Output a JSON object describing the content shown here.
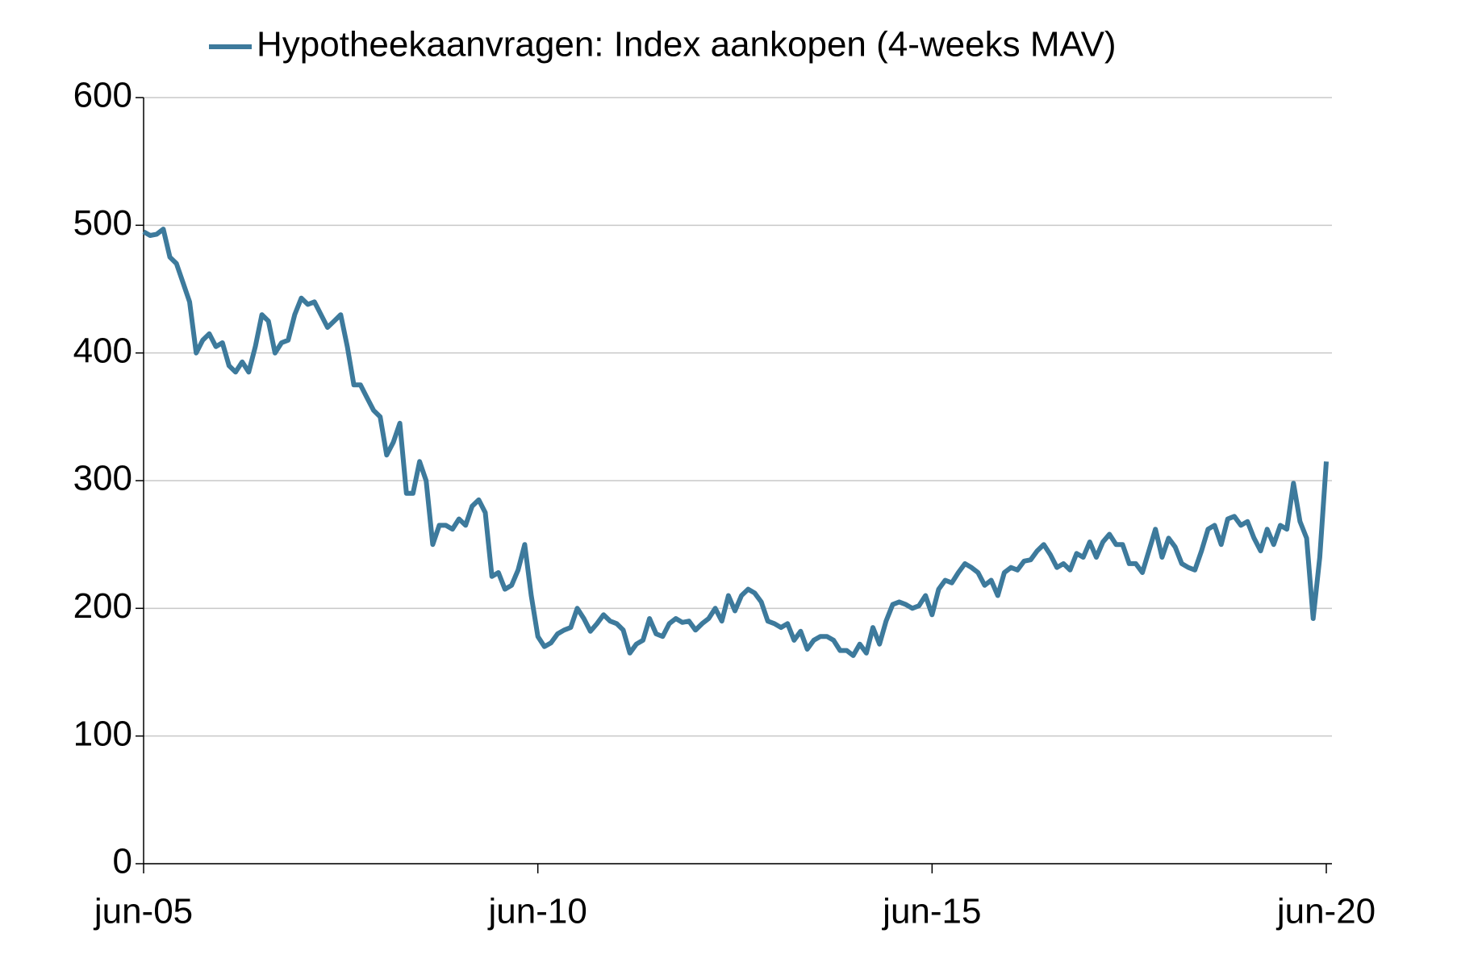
{
  "chart_data": {
    "type": "line",
    "legend": "top",
    "x": [
      "2005-06",
      "2005-07",
      "2005-08",
      "2005-09",
      "2005-10",
      "2005-11",
      "2005-12",
      "2006-01",
      "2006-02",
      "2006-03",
      "2006-04",
      "2006-05",
      "2006-06",
      "2006-07",
      "2006-08",
      "2006-09",
      "2006-10",
      "2006-11",
      "2006-12",
      "2007-01",
      "2007-02",
      "2007-03",
      "2007-04",
      "2007-05",
      "2007-06",
      "2007-07",
      "2007-08",
      "2007-09",
      "2007-10",
      "2007-11",
      "2007-12",
      "2008-01",
      "2008-02",
      "2008-03",
      "2008-04",
      "2008-05",
      "2008-06",
      "2008-07",
      "2008-08",
      "2008-09",
      "2008-10",
      "2008-11",
      "2008-12",
      "2009-01",
      "2009-02",
      "2009-03",
      "2009-04",
      "2009-05",
      "2009-06",
      "2009-07",
      "2009-08",
      "2009-09",
      "2009-10",
      "2009-11",
      "2009-12",
      "2010-01",
      "2010-02",
      "2010-03",
      "2010-04",
      "2010-05",
      "2010-06",
      "2010-07",
      "2010-08",
      "2010-09",
      "2010-10",
      "2010-11",
      "2010-12",
      "2011-01",
      "2011-02",
      "2011-03",
      "2011-04",
      "2011-05",
      "2011-06",
      "2011-07",
      "2011-08",
      "2011-09",
      "2011-10",
      "2011-11",
      "2011-12",
      "2012-01",
      "2012-02",
      "2012-03",
      "2012-04",
      "2012-05",
      "2012-06",
      "2012-07",
      "2012-08",
      "2012-09",
      "2012-10",
      "2012-11",
      "2012-12",
      "2013-01",
      "2013-02",
      "2013-03",
      "2013-04",
      "2013-05",
      "2013-06",
      "2013-07",
      "2013-08",
      "2013-09",
      "2013-10",
      "2013-11",
      "2013-12",
      "2014-01",
      "2014-02",
      "2014-03",
      "2014-04",
      "2014-05",
      "2014-06",
      "2014-07",
      "2014-08",
      "2014-09",
      "2014-10",
      "2014-11",
      "2014-12",
      "2015-01",
      "2015-02",
      "2015-03",
      "2015-04",
      "2015-05",
      "2015-06",
      "2015-07",
      "2015-08",
      "2015-09",
      "2015-10",
      "2015-11",
      "2015-12",
      "2016-01",
      "2016-02",
      "2016-03",
      "2016-04",
      "2016-05",
      "2016-06",
      "2016-07",
      "2016-08",
      "2016-09",
      "2016-10",
      "2016-11",
      "2016-12",
      "2017-01",
      "2017-02",
      "2017-03",
      "2017-04",
      "2017-05",
      "2017-06",
      "2017-07",
      "2017-08",
      "2017-09",
      "2017-10",
      "2017-11",
      "2017-12",
      "2018-01",
      "2018-02",
      "2018-03",
      "2018-04",
      "2018-05",
      "2018-06",
      "2018-07",
      "2018-08",
      "2018-09",
      "2018-10",
      "2018-11",
      "2018-12",
      "2019-01",
      "2019-02",
      "2019-03",
      "2019-04",
      "2019-05",
      "2019-06",
      "2019-07",
      "2019-08",
      "2019-09",
      "2019-10",
      "2019-11",
      "2019-12",
      "2020-01",
      "2020-02",
      "2020-03",
      "2020-04",
      "2020-05",
      "2020-06"
    ],
    "series": [
      {
        "name": "Hypotheekaanvragen: Index aankopen (4-weeks MAV)",
        "color": "#3d7a9c",
        "values": [
          495,
          492,
          493,
          497,
          475,
          470,
          455,
          440,
          400,
          410,
          415,
          405,
          408,
          390,
          385,
          393,
          385,
          405,
          430,
          425,
          400,
          408,
          410,
          430,
          443,
          438,
          440,
          430,
          420,
          425,
          430,
          405,
          375,
          375,
          365,
          355,
          350,
          320,
          330,
          345,
          290,
          290,
          315,
          300,
          250,
          265,
          265,
          262,
          270,
          265,
          280,
          285,
          275,
          225,
          228,
          215,
          218,
          230,
          250,
          210,
          178,
          170,
          173,
          180,
          183,
          185,
          200,
          192,
          182,
          188,
          195,
          190,
          188,
          183,
          165,
          172,
          175,
          192,
          180,
          178,
          188,
          192,
          189,
          190,
          183,
          188,
          192,
          200,
          190,
          210,
          198,
          210,
          215,
          212,
          205,
          190,
          188,
          185,
          188,
          175,
          182,
          168,
          175,
          178,
          178,
          175,
          167,
          167,
          163,
          172,
          165,
          185,
          172,
          190,
          203,
          205,
          203,
          200,
          202,
          210,
          195,
          215,
          222,
          220,
          228,
          235,
          232,
          228,
          218,
          222,
          210,
          228,
          232,
          230,
          237,
          238,
          245,
          250,
          242,
          232,
          235,
          230,
          243,
          240,
          252,
          240,
          252,
          258,
          250,
          250,
          235,
          235,
          228,
          245,
          262,
          240,
          255,
          248,
          235,
          232,
          230,
          245,
          262,
          265,
          250,
          270,
          272,
          265,
          268,
          255,
          245,
          262,
          250,
          265,
          262,
          298,
          268,
          255,
          192,
          240,
          315
        ]
      }
    ],
    "xlim": [
      "2005-06",
      "2020-06"
    ],
    "xticks": [
      {
        "value": "2005-06",
        "label": "jun-05"
      },
      {
        "value": "2010-06",
        "label": "jun-10"
      },
      {
        "value": "2015-06",
        "label": "jun-15"
      },
      {
        "value": "2020-06",
        "label": "jun-20"
      }
    ],
    "ylim": [
      0,
      600
    ],
    "yticks": [
      0,
      100,
      200,
      300,
      400,
      500,
      600
    ],
    "grid": true
  }
}
